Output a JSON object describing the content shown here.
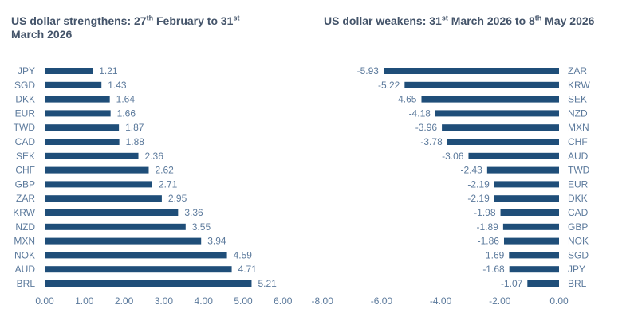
{
  "colors": {
    "bar": "#1f4e79",
    "label": "#5c7a9c",
    "title": "#44546a"
  },
  "chart_data": [
    {
      "type": "bar",
      "orientation": "horizontal",
      "title_parts": {
        "pre": "US dollar strengthens: 27",
        "sup1": "th",
        "mid": " February to 31",
        "sup2": "st",
        "post": " March 2026"
      },
      "categories": [
        "JPY",
        "SGD",
        "DKK",
        "EUR",
        "TWD",
        "CAD",
        "SEK",
        "CHF",
        "GBP",
        "ZAR",
        "KRW",
        "NZD",
        "MXN",
        "NOK",
        "AUD",
        "BRL"
      ],
      "values": [
        1.21,
        1.43,
        1.64,
        1.66,
        1.87,
        1.88,
        2.36,
        2.62,
        2.71,
        2.95,
        3.36,
        3.55,
        3.94,
        4.59,
        4.71,
        5.21
      ],
      "value_labels": [
        "1.21",
        "1.43",
        "1.64",
        "1.66",
        "1.87",
        "1.88",
        "2.36",
        "2.62",
        "2.71",
        "2.95",
        "3.36",
        "3.55",
        "3.94",
        "4.59",
        "4.71",
        "5.21"
      ],
      "xlim": [
        0,
        6
      ],
      "ticks": [
        0,
        1,
        2,
        3,
        4,
        5,
        6
      ],
      "tick_labels": [
        "0.00",
        "1.00",
        "2.00",
        "3.00",
        "4.00",
        "5.00",
        "6.00"
      ],
      "grid": false,
      "legend": "none"
    },
    {
      "type": "bar",
      "orientation": "horizontal",
      "title_parts": {
        "pre": "US dollar weakens: 31",
        "sup1": "st",
        "mid": " March 2026 to 8",
        "sup2": "th",
        "post": " May 2026"
      },
      "categories": [
        "ZAR",
        "KRW",
        "SEK",
        "NZD",
        "MXN",
        "CHF",
        "AUD",
        "TWD",
        "EUR",
        "DKK",
        "CAD",
        "GBP",
        "NOK",
        "SGD",
        "JPY",
        "BRL"
      ],
      "values": [
        -5.93,
        -5.22,
        -4.65,
        -4.18,
        -3.96,
        -3.78,
        -3.06,
        -2.43,
        -2.19,
        -2.19,
        -1.98,
        -1.89,
        -1.86,
        -1.69,
        -1.68,
        -1.07
      ],
      "value_labels": [
        "-5.93",
        "-5.22",
        "-4.65",
        "-4.18",
        "-3.96",
        "-3.78",
        "-3.06",
        "-2.43",
        "-2.19",
        "-2.19",
        "-1.98",
        "-1.89",
        "-1.86",
        "-1.69",
        "-1.68",
        "-1.07"
      ],
      "xlim": [
        -8,
        0
      ],
      "ticks": [
        -8,
        -6,
        -4,
        -2,
        0
      ],
      "tick_labels": [
        "-8.00",
        "-6.00",
        "-4.00",
        "-2.00",
        "0.00"
      ],
      "grid": false,
      "legend": "none"
    }
  ]
}
